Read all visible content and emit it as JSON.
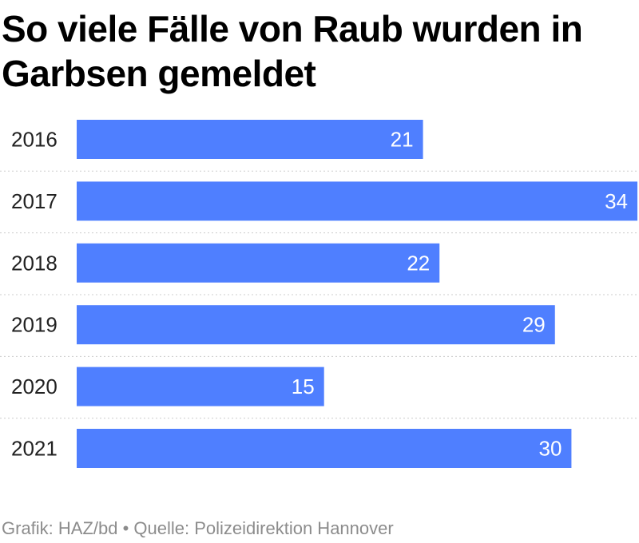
{
  "chart_data": {
    "type": "bar",
    "orientation": "horizontal",
    "title": "So viele Fälle von Raub wurden in Garbsen gemeldet",
    "categories": [
      "2016",
      "2017",
      "2018",
      "2019",
      "2020",
      "2021"
    ],
    "values": [
      21,
      34,
      22,
      29,
      15,
      30
    ],
    "xlim": [
      0,
      34
    ],
    "grid": false,
    "legend": "none",
    "data_labels": true,
    "bar_color": "#4f7fff",
    "separator_color": "#cccccc"
  },
  "footer": {
    "credit": "Grafik: HAZ/bd • Quelle: Polizeidirektion Hannover"
  }
}
